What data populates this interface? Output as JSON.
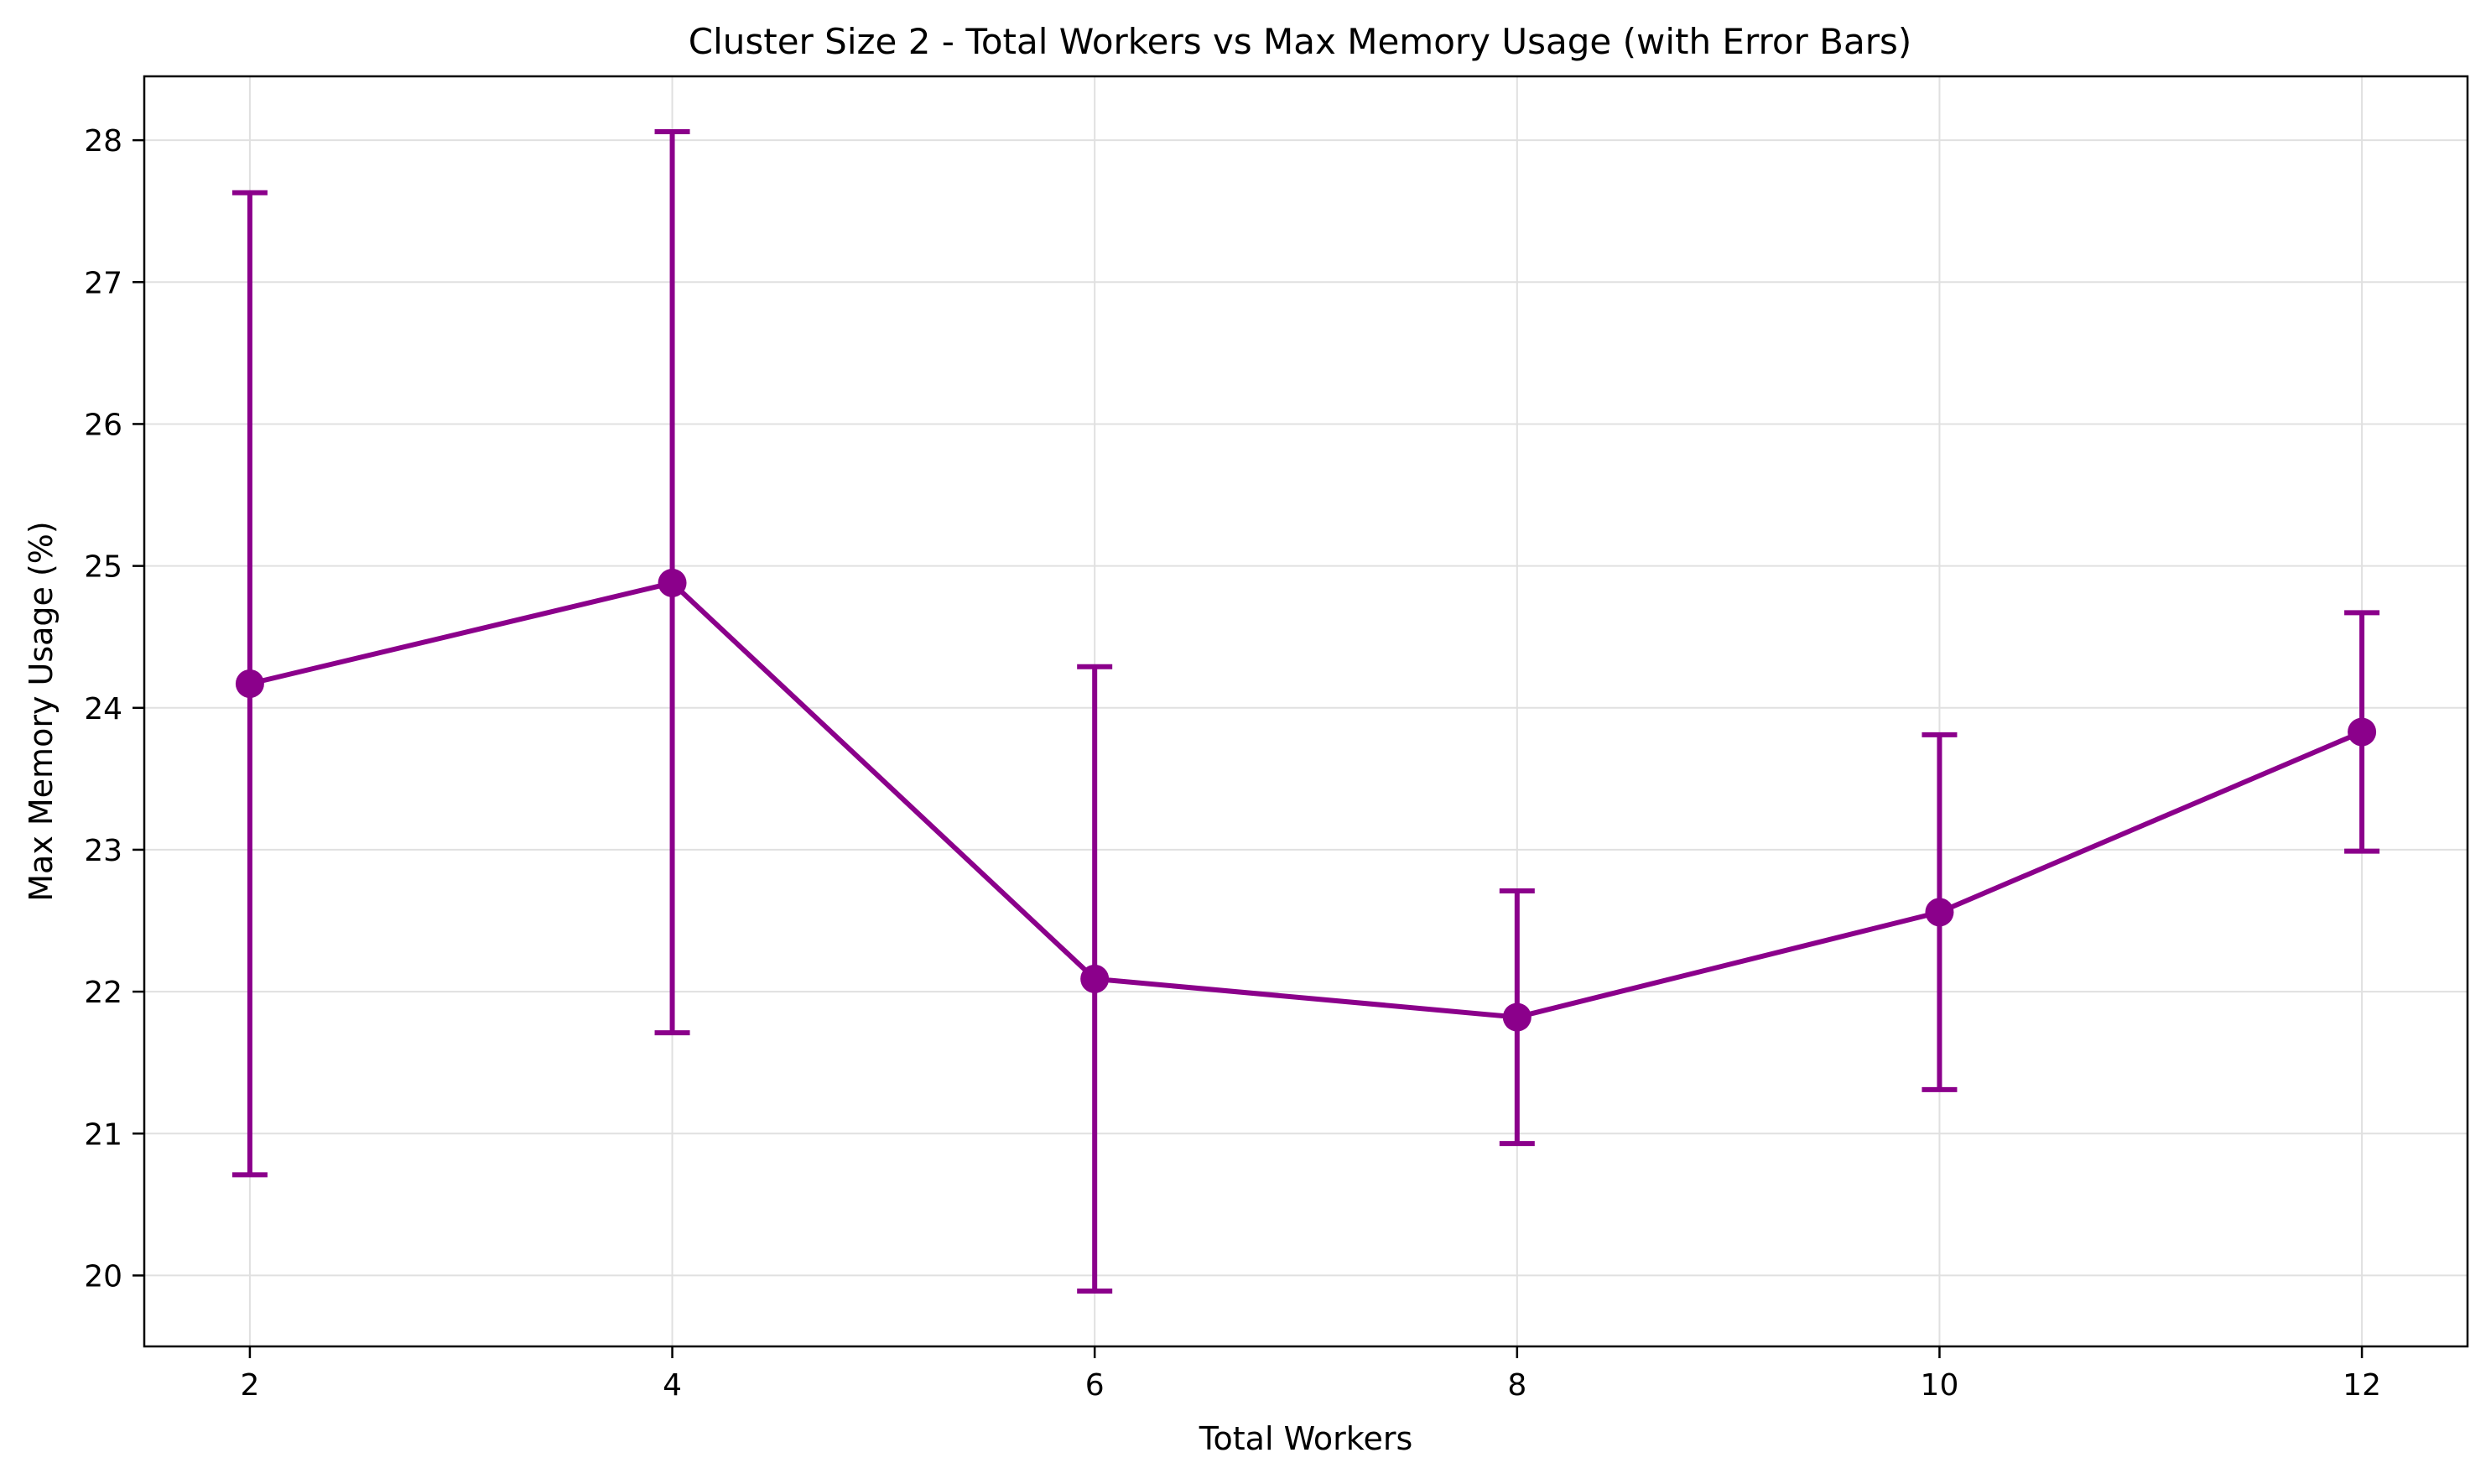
{
  "chart_data": {
    "type": "line",
    "title": "Cluster Size 2 - Total Workers vs Max Memory Usage (with Error Bars)",
    "xlabel": "Total Workers",
    "ylabel": "Max Memory Usage (%)",
    "xlim": [
      1.5,
      12.5
    ],
    "ylim": [
      19.5,
      28.45
    ],
    "xticks": [
      2,
      4,
      6,
      8,
      10,
      12
    ],
    "yticks": [
      20,
      21,
      22,
      23,
      24,
      25,
      26,
      27,
      28
    ],
    "grid": true,
    "color": "#8b008b",
    "series": [
      {
        "x": [
          2,
          4,
          6,
          8,
          10,
          12
        ],
        "y": [
          24.17,
          24.88,
          22.09,
          21.82,
          22.56,
          23.83
        ],
        "err_low": [
          20.71,
          21.71,
          19.89,
          20.93,
          21.31,
          22.99
        ],
        "err_high": [
          27.63,
          28.06,
          24.29,
          22.71,
          23.81,
          24.67
        ]
      }
    ]
  }
}
